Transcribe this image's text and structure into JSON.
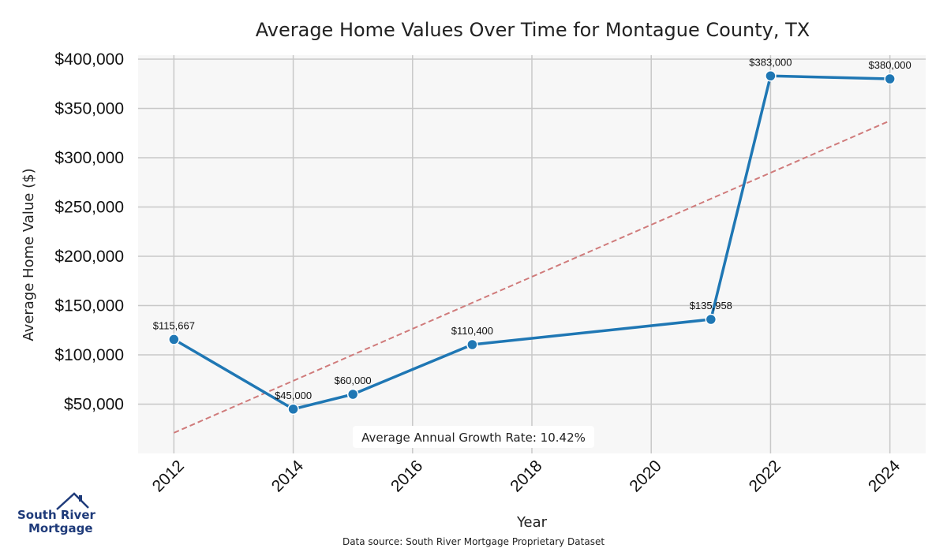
{
  "chart_data": {
    "type": "line",
    "title": "Average Home Values Over Time for Montague County, TX",
    "xlabel": "Year",
    "ylabel": "Average Home Value ($)",
    "x": [
      2012,
      2014,
      2015,
      2017,
      2021,
      2022,
      2024
    ],
    "y": [
      115667,
      45000,
      60000,
      110400,
      135958,
      383000,
      380000
    ],
    "data_labels": [
      "$115,667",
      "$45,000",
      "$60,000",
      "$110,400",
      "$135,958",
      "$383,000",
      "$380,000"
    ],
    "xticks": [
      "2012",
      "2014",
      "2016",
      "2018",
      "2020",
      "2022",
      "2024"
    ],
    "xtick_values": [
      2012,
      2014,
      2016,
      2018,
      2020,
      2022,
      2024
    ],
    "yticks": [
      "$50,000",
      "$100,000",
      "$150,000",
      "$200,000",
      "$250,000",
      "$300,000",
      "$350,000",
      "$400,000"
    ],
    "ytick_values": [
      50000,
      100000,
      150000,
      200000,
      250000,
      300000,
      350000,
      400000
    ],
    "xlim": [
      2011.4,
      2024.6
    ],
    "ylim": [
      0,
      400000
    ],
    "trend_line": {
      "x": [
        2012,
        2024
      ],
      "y": [
        20900,
        337500
      ],
      "color": "#d07b7b",
      "style": "dashed"
    },
    "annotation": "Average Annual Growth Rate: 10.42%",
    "grid": true,
    "series_color": "#1f77b4",
    "plot_background": "#f7f7f7"
  },
  "footer": {
    "source": "Data source: South River Mortgage Proprietary Dataset"
  },
  "logo": {
    "line1": "South River",
    "line2": "Mortgage",
    "color": "#1f3b7a"
  }
}
